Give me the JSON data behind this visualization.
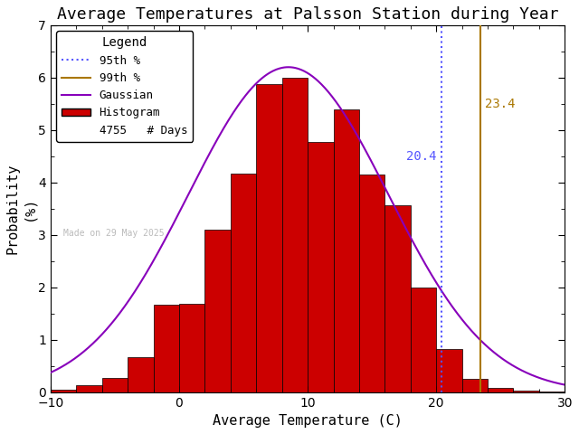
{
  "title": "Average Temperatures at Palsson Station during Year",
  "xlabel": "Average Temperature (C)",
  "ylabel": "Probability\n(%)",
  "xlim": [
    -10,
    30
  ],
  "ylim": [
    0,
    7
  ],
  "yticks": [
    0,
    1,
    2,
    3,
    4,
    5,
    6,
    7
  ],
  "xticks": [
    -10,
    0,
    10,
    20,
    30
  ],
  "bin_edges": [
    -10,
    -8,
    -6,
    -4,
    -2,
    0,
    2,
    4,
    6,
    8,
    10,
    12,
    14,
    16,
    18,
    20,
    22,
    24,
    26,
    28,
    30
  ],
  "bin_heights": [
    0.04,
    0.13,
    0.27,
    0.67,
    1.67,
    1.69,
    3.1,
    4.17,
    5.87,
    6.0,
    4.77,
    5.4,
    4.15,
    3.56,
    2.0,
    0.83,
    0.25,
    0.08,
    0.02,
    0.01
  ],
  "gauss_mean": 8.5,
  "gauss_std": 7.8,
  "gauss_peak": 6.2,
  "pct_95": 20.4,
  "pct_99": 23.4,
  "n_days": 4755,
  "watermark": "Made on 29 May 2025",
  "legend_title": "Legend",
  "background_color": "#ffffff",
  "bar_color": "#cc0000",
  "bar_edge_color": "#000000",
  "gauss_color": "#8800bb",
  "pct95_color": "#5555ff",
  "pct99_color": "#aa7700",
  "watermark_color": "#bbbbbb",
  "title_fontsize": 13,
  "axis_fontsize": 11,
  "tick_fontsize": 10,
  "legend_fontsize": 9
}
